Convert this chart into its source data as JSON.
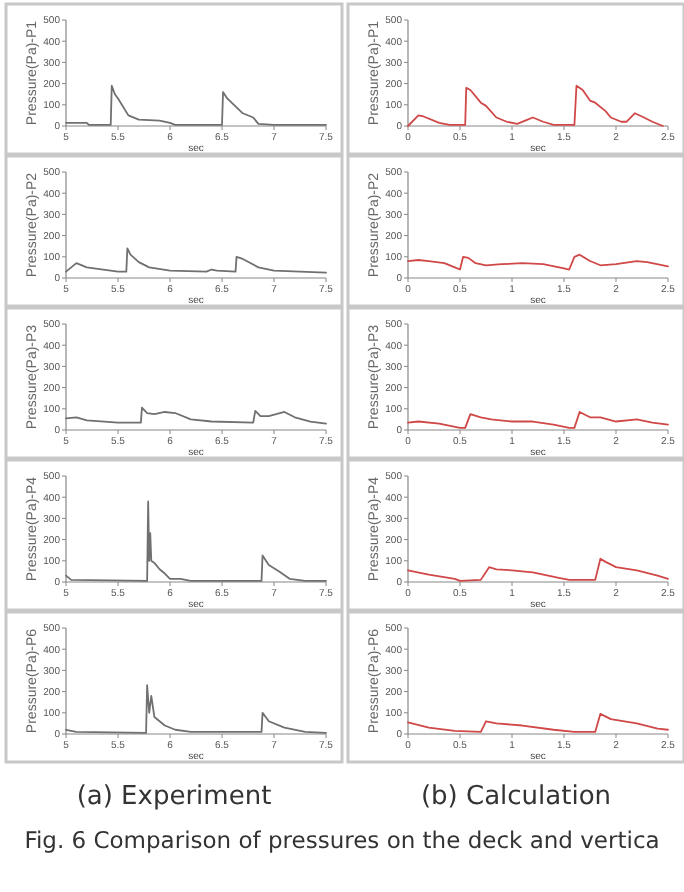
{
  "chart_data": [
    {
      "type": "line",
      "xlabel": "sec",
      "ylabel": "Pressure(Pa)-P1",
      "xlim": [
        5,
        7.5
      ],
      "xticks": [
        5,
        5.5,
        6,
        6.5,
        7,
        7.5
      ],
      "ylim": [
        0,
        500
      ],
      "yticks": [
        0,
        100,
        200,
        300,
        400,
        500
      ],
      "series": [
        {
          "color": "#707070",
          "x": [
            5,
            5.2,
            5.22,
            5.43,
            5.44,
            5.47,
            5.5,
            5.6,
            5.7,
            5.9,
            6.0,
            6.05,
            6.5,
            6.51,
            6.55,
            6.7,
            6.8,
            6.85,
            7.0,
            7.5
          ],
          "values": [
            15,
            15,
            5,
            5,
            190,
            150,
            130,
            50,
            30,
            25,
            15,
            5,
            5,
            160,
            130,
            60,
            40,
            10,
            5,
            5
          ]
        }
      ]
    },
    {
      "type": "line",
      "xlabel": "sec",
      "ylabel": "Pressure(Pa)-P1",
      "xlim": [
        0,
        2.5
      ],
      "xticks": [
        0,
        0.5,
        1,
        1.5,
        2,
        2.5
      ],
      "ylim": [
        0,
        500
      ],
      "yticks": [
        0,
        100,
        200,
        300,
        400,
        500
      ],
      "series": [
        {
          "color": "#d04848",
          "x": [
            0,
            0.1,
            0.15,
            0.3,
            0.4,
            0.55,
            0.56,
            0.6,
            0.7,
            0.75,
            0.85,
            0.95,
            1.05,
            1.15,
            1.2,
            1.3,
            1.4,
            1.6,
            1.62,
            1.68,
            1.75,
            1.8,
            1.9,
            1.95,
            2.05,
            2.1,
            2.18,
            2.25,
            2.35,
            2.45
          ],
          "values": [
            0,
            50,
            45,
            15,
            5,
            5,
            180,
            170,
            110,
            95,
            40,
            20,
            10,
            30,
            40,
            20,
            5,
            5,
            190,
            170,
            120,
            110,
            70,
            40,
            20,
            20,
            60,
            45,
            20,
            0
          ]
        }
      ]
    },
    {
      "type": "line",
      "xlabel": "sec",
      "ylabel": "Pressure(Pa)-P2",
      "xlim": [
        5,
        7.5
      ],
      "xticks": [
        5,
        5.5,
        6,
        6.5,
        7,
        7.5
      ],
      "ylim": [
        0,
        500
      ],
      "yticks": [
        0,
        100,
        200,
        300,
        400,
        500
      ],
      "series": [
        {
          "color": "#707070",
          "x": [
            5,
            5.1,
            5.2,
            5.5,
            5.58,
            5.59,
            5.62,
            5.7,
            5.8,
            6,
            6.35,
            6.4,
            6.45,
            6.63,
            6.64,
            6.7,
            6.85,
            7,
            7.5
          ],
          "values": [
            30,
            70,
            50,
            30,
            30,
            140,
            110,
            75,
            50,
            35,
            30,
            40,
            35,
            30,
            100,
            90,
            50,
            35,
            25
          ]
        }
      ]
    },
    {
      "type": "line",
      "xlabel": "sec",
      "ylabel": "Pressure(Pa)-P2",
      "xlim": [
        0,
        2.5
      ],
      "xticks": [
        0,
        0.5,
        1,
        1.5,
        2,
        2.5
      ],
      "ylim": [
        0,
        500
      ],
      "yticks": [
        0,
        100,
        200,
        300,
        400,
        500
      ],
      "series": [
        {
          "color": "#d04848",
          "x": [
            0,
            0.1,
            0.2,
            0.35,
            0.45,
            0.5,
            0.53,
            0.58,
            0.65,
            0.75,
            0.9,
            1.1,
            1.3,
            1.5,
            1.55,
            1.6,
            1.65,
            1.75,
            1.85,
            2.0,
            2.2,
            2.3,
            2.5
          ],
          "values": [
            80,
            85,
            80,
            70,
            50,
            40,
            100,
            95,
            70,
            60,
            65,
            70,
            65,
            45,
            40,
            100,
            110,
            80,
            60,
            65,
            80,
            75,
            55
          ]
        }
      ]
    },
    {
      "type": "line",
      "xlabel": "sec",
      "ylabel": "Pressure(Pa)-P3",
      "xlim": [
        5,
        7.5
      ],
      "xticks": [
        5,
        5.5,
        6,
        6.5,
        7,
        7.5
      ],
      "ylim": [
        0,
        500
      ],
      "yticks": [
        0,
        100,
        200,
        300,
        400,
        500
      ],
      "series": [
        {
          "color": "#707070",
          "x": [
            5,
            5.1,
            5.2,
            5.5,
            5.72,
            5.73,
            5.78,
            5.85,
            5.95,
            6.05,
            6.2,
            6.4,
            6.8,
            6.82,
            6.87,
            6.95,
            7.1,
            7.2,
            7.35,
            7.5
          ],
          "values": [
            55,
            60,
            45,
            35,
            35,
            105,
            80,
            75,
            85,
            80,
            50,
            40,
            35,
            90,
            65,
            65,
            85,
            60,
            40,
            30
          ]
        }
      ]
    },
    {
      "type": "line",
      "xlabel": "sec",
      "ylabel": "Pressure(Pa)-P3",
      "xlim": [
        0,
        2.5
      ],
      "xticks": [
        0,
        0.5,
        1,
        1.5,
        2,
        2.5
      ],
      "ylim": [
        0,
        500
      ],
      "yticks": [
        0,
        100,
        200,
        300,
        400,
        500
      ],
      "series": [
        {
          "color": "#d04848",
          "x": [
            0,
            0.1,
            0.3,
            0.5,
            0.55,
            0.6,
            0.7,
            0.8,
            1.0,
            1.2,
            1.4,
            1.55,
            1.6,
            1.65,
            1.75,
            1.85,
            2.0,
            2.2,
            2.35,
            2.5
          ],
          "values": [
            35,
            40,
            30,
            10,
            10,
            75,
            60,
            50,
            40,
            40,
            25,
            10,
            10,
            85,
            60,
            60,
            40,
            50,
            35,
            25
          ]
        }
      ]
    },
    {
      "type": "line",
      "xlabel": "sec",
      "ylabel": "Pressure(Pa)-P4",
      "xlim": [
        5,
        7.5
      ],
      "xticks": [
        5,
        5.5,
        6,
        6.5,
        7,
        7.5
      ],
      "ylim": [
        0,
        500
      ],
      "yticks": [
        0,
        100,
        200,
        300,
        400,
        500
      ],
      "series": [
        {
          "color": "#707070",
          "x": [
            5,
            5.05,
            5.78,
            5.79,
            5.8,
            5.81,
            5.82,
            5.85,
            5.9,
            5.95,
            6.0,
            6.1,
            6.2,
            6.88,
            6.89,
            6.95,
            7.05,
            7.15,
            7.3,
            7.5
          ],
          "values": [
            30,
            10,
            5,
            380,
            100,
            230,
            100,
            90,
            60,
            40,
            15,
            15,
            5,
            5,
            125,
            80,
            50,
            15,
            5,
            5
          ]
        }
      ]
    },
    {
      "type": "line",
      "xlabel": "sec",
      "ylabel": "Pressure(Pa)-P4",
      "xlim": [
        0,
        2.5
      ],
      "xticks": [
        0,
        0.5,
        1,
        1.5,
        2,
        2.5
      ],
      "ylim": [
        0,
        500
      ],
      "yticks": [
        0,
        100,
        200,
        300,
        400,
        500
      ],
      "series": [
        {
          "color": "#d04848",
          "x": [
            0,
            0.2,
            0.45,
            0.5,
            0.7,
            0.78,
            0.85,
            1.0,
            1.2,
            1.45,
            1.55,
            1.8,
            1.85,
            1.9,
            2.0,
            2.2,
            2.4,
            2.5
          ],
          "values": [
            55,
            35,
            15,
            5,
            10,
            70,
            60,
            55,
            45,
            20,
            10,
            10,
            110,
            95,
            70,
            55,
            30,
            15
          ]
        }
      ]
    },
    {
      "type": "line",
      "xlabel": "sec",
      "ylabel": "Pressure(Pa)-P6",
      "xlim": [
        5,
        7.5
      ],
      "xticks": [
        5,
        5.5,
        6,
        6.5,
        7,
        7.5
      ],
      "ylim": [
        0,
        500
      ],
      "yticks": [
        0,
        100,
        200,
        300,
        400,
        500
      ],
      "annotations": [
        "(a) Experiment"
      ],
      "series": [
        {
          "color": "#707070",
          "x": [
            5,
            5.1,
            5.77,
            5.78,
            5.8,
            5.82,
            5.85,
            5.95,
            6.05,
            6.2,
            6.88,
            6.89,
            6.95,
            7.1,
            7.3,
            7.5
          ],
          "values": [
            20,
            10,
            5,
            230,
            100,
            180,
            80,
            40,
            20,
            10,
            10,
            100,
            60,
            30,
            10,
            5
          ]
        }
      ]
    },
    {
      "type": "line",
      "xlabel": "sec",
      "ylabel": "Pressure(Pa)-P6",
      "xlim": [
        0,
        2.5
      ],
      "xticks": [
        0,
        0.5,
        1,
        1.5,
        2,
        2.5
      ],
      "ylim": [
        0,
        500
      ],
      "yticks": [
        0,
        100,
        200,
        300,
        400,
        500
      ],
      "annotations": [
        "(b) Calculation",
        "Fig. 6 Comparison of pressures on the deck and vertica"
      ],
      "series": [
        {
          "color": "#d04848",
          "x": [
            0,
            0.2,
            0.45,
            0.7,
            0.75,
            0.85,
            1.1,
            1.4,
            1.6,
            1.8,
            1.85,
            1.95,
            2.2,
            2.4,
            2.5
          ],
          "values": [
            55,
            30,
            15,
            10,
            60,
            50,
            40,
            20,
            10,
            10,
            95,
            70,
            50,
            25,
            20
          ]
        }
      ]
    }
  ]
}
